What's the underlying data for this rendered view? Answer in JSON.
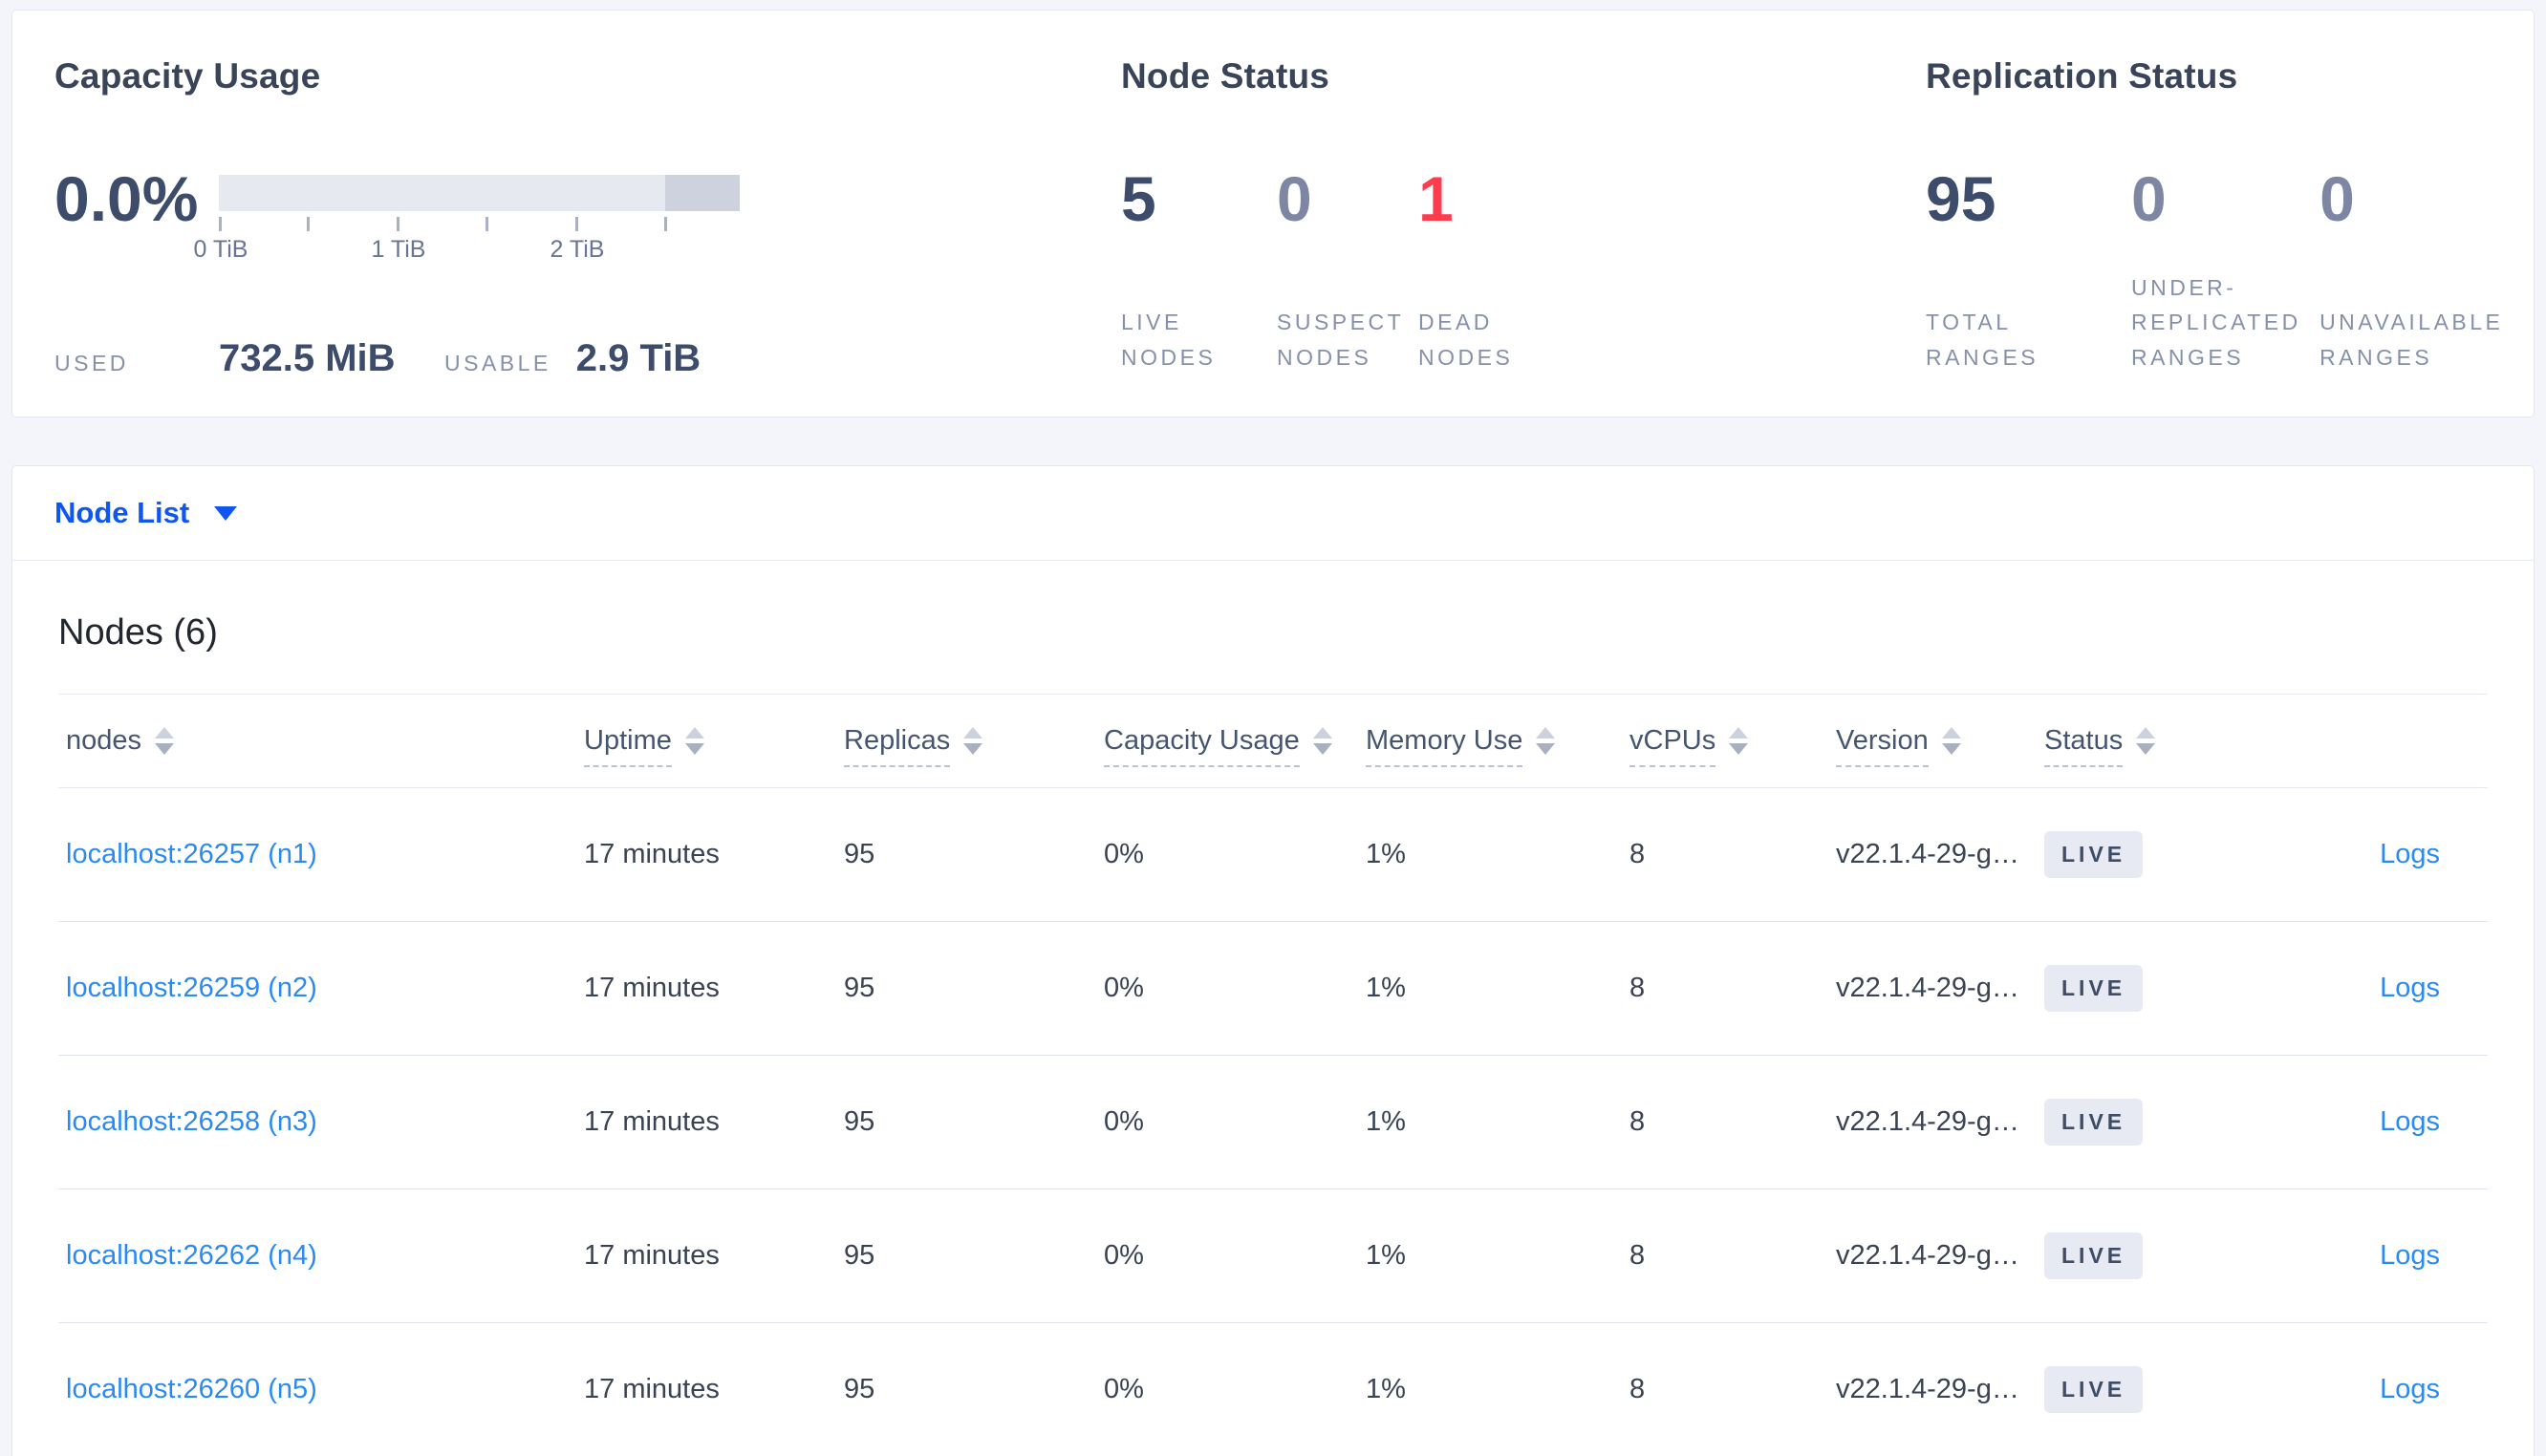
{
  "colors": {
    "accent_blue": "#0f55f0",
    "link_blue": "#2b8af2",
    "dead_red": "#ff3b4e",
    "muted_blue_gray": "#7d87a3",
    "dark_slate": "#3c4c6a",
    "badge_bg": "#e7eaf2",
    "bar_light": "#e7e9f1",
    "bar_dark": "#cdd2de"
  },
  "summary": {
    "capacity": {
      "title": "Capacity Usage",
      "percent": "0.0%",
      "ticks": [
        "0 TiB",
        "1 TiB",
        "2 TiB"
      ],
      "used_label": "USED",
      "used_value": "732.5 MiB",
      "usable_label": "USABLE",
      "usable_value": "2.9 TiB"
    },
    "node_status": {
      "title": "Node Status",
      "items": [
        {
          "value": "5",
          "label": "LIVE NODES"
        },
        {
          "value": "0",
          "label": "SUSPECT NODES"
        },
        {
          "value": "1",
          "label": "DEAD NODES"
        }
      ]
    },
    "replication": {
      "title": "Replication Status",
      "items": [
        {
          "value": "95",
          "label": "TOTAL RANGES"
        },
        {
          "value": "0",
          "label": "UNDER-REPLICATED RANGES"
        },
        {
          "value": "0",
          "label": "UNAVAILABLE RANGES"
        }
      ]
    }
  },
  "node_list": {
    "dropdown_label": "Node List",
    "heading": "Nodes (6)"
  },
  "table": {
    "columns": [
      "nodes",
      "Uptime",
      "Replicas",
      "Capacity Usage",
      "Memory Use",
      "vCPUs",
      "Version",
      "Status"
    ],
    "rows": [
      {
        "node": "localhost:26257 (n1)",
        "uptime": "17 minutes",
        "replicas": "95",
        "capacity": "0%",
        "memory": "1%",
        "vcpus": "8",
        "version": "v22.1.4-29-g…",
        "status": "LIVE",
        "logs": "Logs"
      },
      {
        "node": "localhost:26259 (n2)",
        "uptime": "17 minutes",
        "replicas": "95",
        "capacity": "0%",
        "memory": "1%",
        "vcpus": "8",
        "version": "v22.1.4-29-g…",
        "status": "LIVE",
        "logs": "Logs"
      },
      {
        "node": "localhost:26258 (n3)",
        "uptime": "17 minutes",
        "replicas": "95",
        "capacity": "0%",
        "memory": "1%",
        "vcpus": "8",
        "version": "v22.1.4-29-g…",
        "status": "LIVE",
        "logs": "Logs"
      },
      {
        "node": "localhost:26262 (n4)",
        "uptime": "17 minutes",
        "replicas": "95",
        "capacity": "0%",
        "memory": "1%",
        "vcpus": "8",
        "version": "v22.1.4-29-g…",
        "status": "LIVE",
        "logs": "Logs"
      },
      {
        "node": "localhost:26260 (n5)",
        "uptime": "17 minutes",
        "replicas": "95",
        "capacity": "0%",
        "memory": "1%",
        "vcpus": "8",
        "version": "v22.1.4-29-g…",
        "status": "LIVE",
        "logs": "Logs"
      }
    ]
  }
}
